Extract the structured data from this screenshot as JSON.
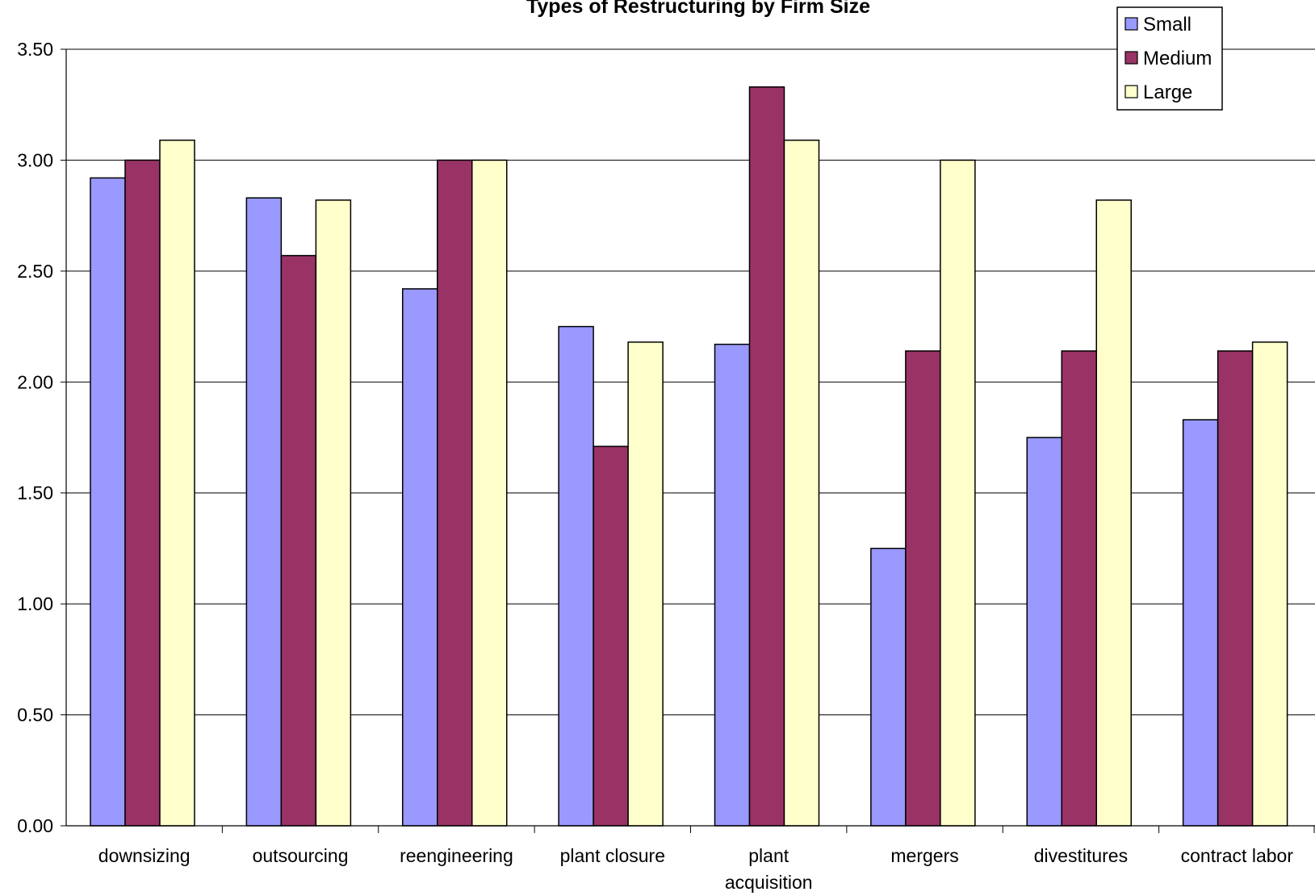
{
  "chart_data": {
    "type": "bar",
    "title": "Types of Restructuring by Firm Size",
    "xlabel": "",
    "ylabel": "",
    "ylim": [
      0,
      3.5
    ],
    "yticks": [
      "0.00",
      "0.50",
      "1.00",
      "1.50",
      "2.00",
      "2.50",
      "3.00",
      "3.50"
    ],
    "ytick_values": [
      0,
      0.5,
      1,
      1.5,
      2,
      2.5,
      3,
      3.5
    ],
    "categories": [
      "downsizing",
      "outsourcing",
      "reengineering",
      "plant closure",
      "plant acquisition",
      "mergers",
      "divestitures",
      "contract labor"
    ],
    "category_lines": [
      [
        "downsizing"
      ],
      [
        "outsourcing"
      ],
      [
        "reengineering"
      ],
      [
        "plant closure"
      ],
      [
        "plant",
        "acquisition"
      ],
      [
        "mergers"
      ],
      [
        "divestitures"
      ],
      [
        "contract labor"
      ]
    ],
    "series": [
      {
        "name": "Small",
        "color": "#9999ff",
        "values": [
          2.92,
          2.83,
          2.42,
          2.25,
          2.17,
          1.25,
          1.75,
          1.83
        ]
      },
      {
        "name": "Medium",
        "color": "#993366",
        "values": [
          3.0,
          2.57,
          3.0,
          1.71,
          3.33,
          2.14,
          2.14,
          2.14
        ]
      },
      {
        "name": "Large",
        "color": "#ffffcc",
        "values": [
          3.09,
          2.82,
          3.0,
          2.18,
          3.09,
          3.0,
          2.82,
          2.18
        ]
      }
    ],
    "grid": true,
    "legend_position": "top-right"
  }
}
